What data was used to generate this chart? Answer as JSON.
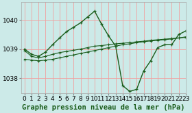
{
  "title": "Graphe pression niveau de la mer (hPa)",
  "bg_color": "#cceae8",
  "grid_color": "#f0a0a0",
  "line_color": "#1a5c1a",
  "xlim": [
    -0.5,
    23
  ],
  "ylim": [
    1037.5,
    1040.6
  ],
  "yticks": [
    1038,
    1039,
    1040
  ],
  "xticks": [
    0,
    1,
    2,
    3,
    4,
    5,
    6,
    7,
    8,
    9,
    10,
    11,
    12,
    13,
    14,
    15,
    16,
    17,
    18,
    19,
    20,
    21,
    22,
    23
  ],
  "line1_x": [
    0,
    1,
    2,
    3,
    4,
    5,
    6,
    7,
    8,
    9,
    10,
    11,
    12,
    13,
    14,
    15,
    16,
    17,
    18,
    19,
    20,
    21,
    22,
    23
  ],
  "line1_y": [
    1038.95,
    1038.75,
    1038.7,
    1038.75,
    1038.82,
    1038.88,
    1038.92,
    1038.96,
    1039.0,
    1039.05,
    1039.1,
    1039.12,
    1039.15,
    1039.18,
    1039.2,
    1039.22,
    1039.25,
    1039.27,
    1039.3,
    1039.32,
    1039.34,
    1039.36,
    1039.38,
    1039.4
  ],
  "line2_x": [
    0,
    1,
    2,
    3,
    4,
    5,
    6,
    7,
    8,
    9,
    10,
    11,
    12,
    13,
    14,
    15,
    16,
    17,
    18,
    19,
    20,
    21,
    22,
    23
  ],
  "line2_y": [
    1038.65,
    1038.62,
    1038.6,
    1038.62,
    1038.65,
    1038.7,
    1038.75,
    1038.8,
    1038.85,
    1038.9,
    1038.95,
    1039.0,
    1039.05,
    1039.1,
    1039.15,
    1039.18,
    1039.22,
    1039.25,
    1039.28,
    1039.3,
    1039.32,
    1039.35,
    1039.38,
    1039.42
  ],
  "line3_x": [
    0,
    1,
    2,
    3,
    4,
    5,
    6,
    7,
    8,
    9,
    10,
    11,
    12,
    13,
    14,
    15,
    16,
    17,
    18,
    19,
    20,
    21,
    22,
    23
  ],
  "line3_y": [
    1039.0,
    1038.82,
    1038.75,
    1038.9,
    1039.15,
    1039.38,
    1039.6,
    1039.75,
    1039.9,
    1040.1,
    1040.3,
    1039.85,
    1039.45,
    1039.1,
    1037.75,
    1037.55,
    1037.62,
    1038.25,
    1038.6,
    1039.05,
    1039.15,
    1039.15,
    1039.5,
    1039.62
  ],
  "xlabel_fontsize": 7.5,
  "tick_fontsize": 6.5,
  "figwidth": 2.8,
  "figheight": 1.65,
  "dpi": 100
}
